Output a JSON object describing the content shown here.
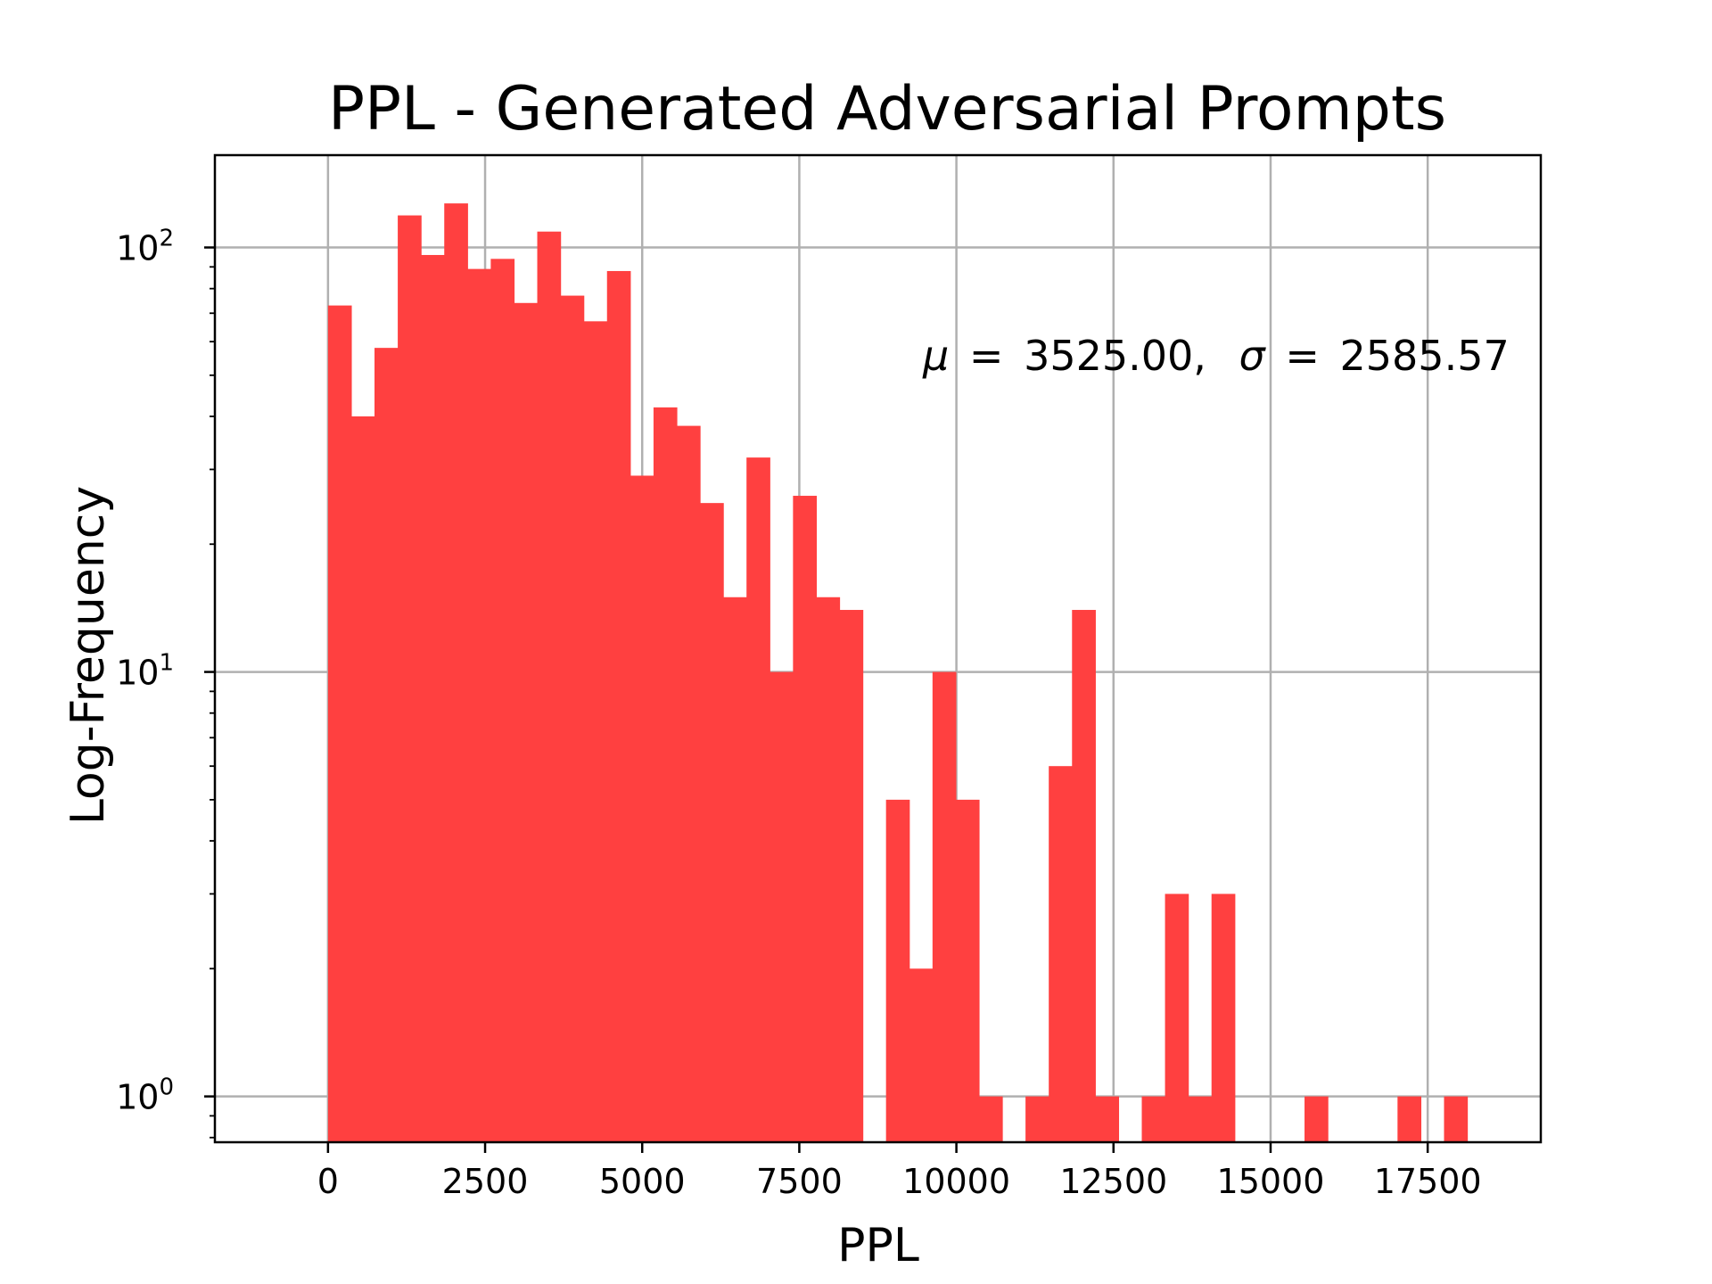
{
  "chart_data": {
    "type": "bar",
    "title": "PPL - Generated Adversarial Prompts",
    "xlabel": "PPL",
    "ylabel": "Log-Frequency",
    "y_scale": "log",
    "xlim": [
      -1800,
      19300
    ],
    "ylim": [
      0.78,
      165
    ],
    "grid": true,
    "bar_color": "#ff4040",
    "x_ticks": [
      0,
      2500,
      5000,
      7500,
      10000,
      12500,
      15000,
      17500
    ],
    "x_tick_labels": [
      "0",
      "2500",
      "5000",
      "7500",
      "10000",
      "12500",
      "15000",
      "17500"
    ],
    "y_ticks": [
      {
        "value": 1,
        "base": "10",
        "exp": "0"
      },
      {
        "value": 10,
        "base": "10",
        "exp": "1"
      },
      {
        "value": 100,
        "base": "10",
        "exp": "2"
      }
    ],
    "bin_start": 0,
    "bin_width": 370,
    "values": [
      73,
      40,
      58,
      119,
      96,
      127,
      89,
      94,
      74,
      109,
      77,
      67,
      88,
      29,
      42,
      38,
      25,
      15,
      32,
      10,
      26,
      15,
      14,
      0,
      5,
      2,
      10,
      5,
      1,
      0,
      1,
      6,
      14,
      1,
      0,
      1,
      3,
      1,
      3,
      0,
      0,
      0,
      1,
      0,
      0,
      0,
      1,
      0,
      1,
      0
    ],
    "annotation": {
      "mu_symbol": "μ",
      "mu_value": "3525.00,",
      "sigma_symbol": "σ",
      "sigma_value": "2585.57",
      "equals": "="
    }
  }
}
